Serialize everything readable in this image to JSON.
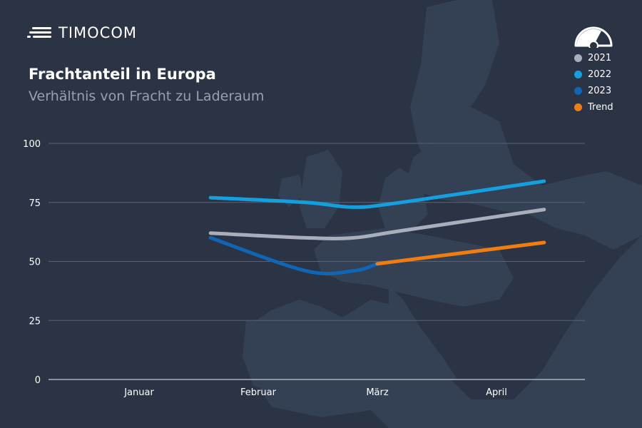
{
  "brand": {
    "name": "TIMOCOM"
  },
  "header": {
    "title": "Frachtanteil in Europa",
    "subtitle": "Verhältnis von Fracht zu Laderaum"
  },
  "legend": [
    {
      "label": "2021",
      "color": "#a9aebb"
    },
    {
      "label": "2022",
      "color": "#149fdf"
    },
    {
      "label": "2023",
      "color": "#0f66b4"
    },
    {
      "label": "Trend",
      "color": "#ef7d12"
    }
  ],
  "icons": {
    "logo": "timocom-speed-lines-icon",
    "gauge": "gauge-icon"
  },
  "chart_data": {
    "type": "line",
    "x": [
      "Januar",
      "Februar",
      "März",
      "April"
    ],
    "ylim": [
      0,
      100
    ],
    "yticks": [
      0,
      25,
      50,
      75,
      100
    ],
    "grid": true,
    "legend_position": "top-right",
    "series": [
      {
        "name": "2021",
        "color": "#a9aebb",
        "points": [
          [
            0.6,
            62
          ],
          [
            1.4,
            60
          ],
          [
            1.8,
            60
          ],
          [
            2.2,
            63
          ],
          [
            3.4,
            72
          ]
        ]
      },
      {
        "name": "2022",
        "color": "#149fdf",
        "points": [
          [
            0.6,
            77
          ],
          [
            1.4,
            75
          ],
          [
            1.8,
            73
          ],
          [
            2.2,
            75
          ],
          [
            3.4,
            84
          ]
        ]
      },
      {
        "name": "2023",
        "color": "#0f66b4",
        "points": [
          [
            0.6,
            60
          ],
          [
            1.4,
            46
          ],
          [
            1.8,
            46
          ],
          [
            2.0,
            49
          ]
        ]
      },
      {
        "name": "Trend",
        "color": "#ef7d12",
        "points": [
          [
            2.0,
            49
          ],
          [
            3.4,
            58
          ]
        ]
      }
    ]
  }
}
